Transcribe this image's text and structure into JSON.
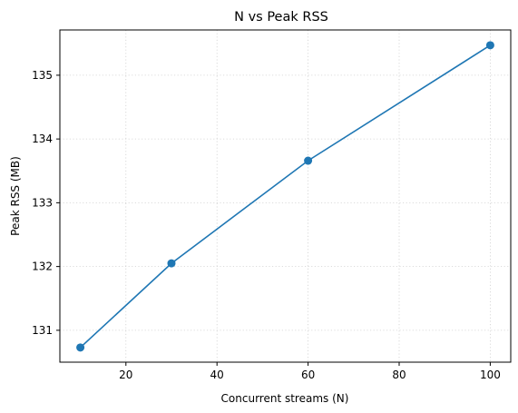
{
  "chart_data": {
    "type": "line",
    "title": "N vs Peak RSS",
    "xlabel": "Concurrent streams (N)",
    "ylabel": "Peak RSS (MB)",
    "x": [
      10,
      30,
      60,
      100
    ],
    "series": [
      {
        "values": [
          130.73,
          132.05,
          133.66,
          135.47
        ],
        "color": "#1f77b4",
        "marker": "circle"
      }
    ],
    "xlim": [
      5.5,
      104.5
    ],
    "ylim": [
      130.5,
      135.71
    ],
    "xticks": [
      20,
      40,
      60,
      80,
      100
    ],
    "yticks": [
      131,
      132,
      133,
      134,
      135
    ],
    "grid": true
  }
}
